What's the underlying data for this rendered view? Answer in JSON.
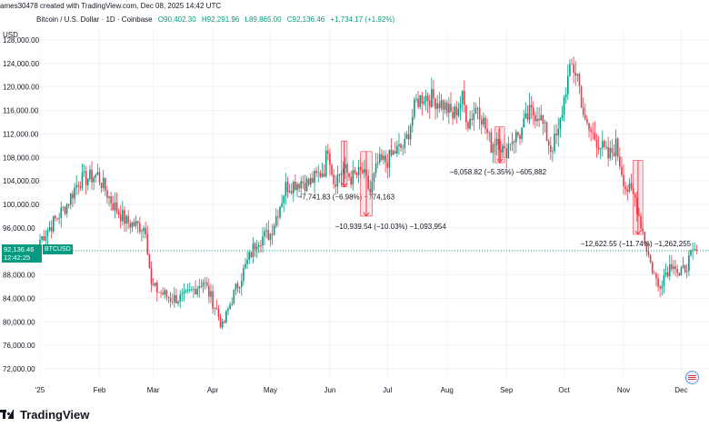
{
  "header": {
    "user_created": "ames30478 created with TradingView.com, Dec 08, 2025 14:42 UTC",
    "symbol": "Bitcoin / U.S. Dollar · 1D · Coinbase",
    "open": "O90,402.30",
    "high": "H92,291.96",
    "low": "L89,865.00",
    "close": "C92,136.46",
    "change": "+1,734.17 (+1.92%)"
  },
  "currency": "USD",
  "price_tag": {
    "price": "92,136.46",
    "countdown": "12:42:25",
    "ticker": "BTCUSD"
  },
  "footer": {
    "brand": "TradingView",
    "logo": "tradingview-logo-icon"
  },
  "colors": {
    "up": "#089981",
    "down": "#f23645",
    "range_fill": "#f7c6cd",
    "price_line": "#089981"
  },
  "chart_data": {
    "type": "candlestick",
    "title": "Bitcoin / U.S. Dollar · 1D · Coinbase",
    "ylim": [
      70000,
      130000
    ],
    "yticks": [
      "72,000.00",
      "76,000.00",
      "80,000.00",
      "84,000.00",
      "88,000.00",
      "92,000.00",
      "96,000.00",
      "100,000.00",
      "104,000.00",
      "108,000.00",
      "112,000.00",
      "116,000.00",
      "120,000.00",
      "124,000.00",
      "128,000.00"
    ],
    "x_tick_labels": [
      "'25",
      "Feb",
      "Mar",
      "Apr",
      "May",
      "Jun",
      "Jul",
      "Aug",
      "Sep",
      "Oct",
      "Nov",
      "Dec"
    ],
    "x_tick_days": [
      0,
      31,
      59,
      90,
      120,
      151,
      181,
      212,
      243,
      273,
      304,
      334
    ],
    "close_path_days": [
      0,
      14,
      20,
      30,
      38,
      45,
      55,
      58,
      68,
      75,
      85,
      92,
      95,
      100,
      113,
      120,
      128,
      136,
      140,
      148,
      150,
      153,
      158,
      162,
      168,
      172,
      176,
      181,
      185,
      190,
      196,
      200,
      205,
      210,
      215,
      220,
      223,
      228,
      235,
      238,
      242,
      245,
      250,
      255,
      260,
      262,
      266,
      270,
      274,
      277,
      280,
      284,
      290,
      296,
      300,
      305,
      310,
      315,
      318,
      322,
      325,
      330,
      333,
      338,
      342
    ],
    "close_path_values": [
      94000,
      100000,
      104000,
      105000,
      100000,
      97000,
      96000,
      86000,
      84000,
      84000,
      87000,
      82000,
      79000,
      84000,
      94000,
      95000,
      103000,
      104000,
      103500,
      106000,
      110000,
      104000,
      106000,
      104500,
      105500,
      102000,
      107000,
      107500,
      109000,
      110000,
      117500,
      118500,
      118000,
      117000,
      115000,
      118000,
      114000,
      117000,
      110000,
      111500,
      108500,
      111000,
      112000,
      115500,
      115500,
      113500,
      109500,
      112000,
      120000,
      123500,
      122000,
      113500,
      111000,
      108000,
      110000,
      103000,
      101000,
      94000,
      90000,
      86000,
      88000,
      90500,
      87500,
      90500,
      92136
    ],
    "annotations": [
      {
        "label": "−7,741.83 (−6.98%) −774,163",
        "start_day": 157,
        "end_day": 160,
        "from": 110800,
        "to": 103000
      },
      {
        "label": "−10,939.54 (−10.03%) −1,093,954",
        "start_day": 167,
        "end_day": 173,
        "from": 109000,
        "to": 98000
      },
      {
        "label": "−6,058.82 (−5.35%) −605,882",
        "start_day": 237,
        "end_day": 242,
        "from": 113200,
        "to": 107100
      },
      {
        "label": "−12,622.55 (−11.74%) −1,262,255",
        "start_day": 309,
        "end_day": 314,
        "from": 107500,
        "to": 94900
      }
    ],
    "current_price": 92136.46
  }
}
